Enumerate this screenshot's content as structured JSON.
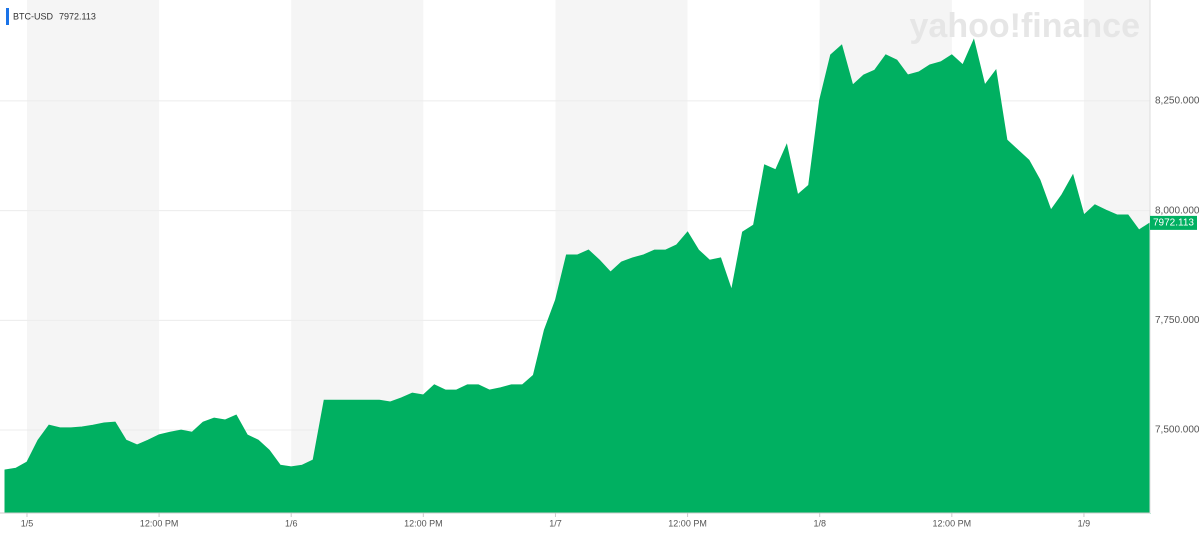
{
  "chart_data": {
    "type": "area",
    "symbol": "BTC-USD",
    "watermark": "yahoo!finance",
    "color": "#00b061",
    "x": [
      -2,
      -1,
      0,
      1,
      2,
      3,
      4,
      5,
      6,
      7,
      8,
      9,
      10,
      11,
      12,
      13,
      14,
      15,
      16,
      17,
      18,
      19,
      20,
      21,
      22,
      23,
      24,
      25,
      26,
      27,
      28,
      29,
      30,
      31,
      32,
      33,
      34,
      35,
      36,
      37,
      38,
      39,
      40,
      41,
      42,
      43,
      44,
      45,
      46,
      47,
      48,
      49,
      50,
      51,
      52,
      53,
      54,
      55,
      56,
      57,
      58,
      59,
      60,
      61,
      62,
      63,
      64,
      65,
      66,
      67,
      68,
      69,
      70,
      71,
      72,
      73,
      74,
      75,
      76,
      77,
      78,
      79,
      80,
      81,
      82,
      83,
      84,
      85,
      86,
      87,
      88,
      89,
      90,
      91,
      92,
      93,
      94,
      95,
      96,
      97,
      98,
      99,
      100,
      101,
      102
    ],
    "values": [
      7409,
      7413,
      7427,
      7477,
      7511,
      7505,
      7505,
      7507,
      7511,
      7516,
      7518,
      7477,
      7466,
      7477,
      7489,
      7495,
      7500,
      7495,
      7518,
      7527,
      7523,
      7534,
      7489,
      7477,
      7454,
      7420,
      7416,
      7420,
      7432,
      7568,
      7568,
      7568,
      7568,
      7568,
      7568,
      7564,
      7573,
      7584,
      7580,
      7603,
      7591,
      7591,
      7603,
      7603,
      7591,
      7596,
      7603,
      7603,
      7625,
      7728,
      7796,
      7899,
      7899,
      7910,
      7887,
      7860,
      7883,
      7892,
      7899,
      7910,
      7910,
      7922,
      7951,
      7910,
      7887,
      7892,
      7819,
      7951,
      7967,
      8104,
      8093,
      8150,
      8036,
      8058,
      8252,
      8355,
      8377,
      8286,
      8309,
      8320,
      8355,
      8343,
      8309,
      8316,
      8332,
      8339,
      8355,
      8332,
      8389,
      8286,
      8320,
      8161,
      8138,
      8115,
      8070,
      8001,
      8036,
      8081,
      7990,
      8013,
      8001,
      7990,
      7990,
      7956,
      7972.113
    ],
    "xlim": [
      -2.45,
      102
    ],
    "xticks": [
      {
        "value": 0,
        "label": "1/5"
      },
      {
        "value": 12,
        "label": "12:00 PM"
      },
      {
        "value": 24,
        "label": "1/6"
      },
      {
        "value": 36,
        "label": "12:00 PM"
      },
      {
        "value": 48,
        "label": "1/7"
      },
      {
        "value": 60,
        "label": "12:00 PM"
      },
      {
        "value": 72,
        "label": "1/8"
      },
      {
        "value": 84,
        "label": "12:00 PM"
      },
      {
        "value": 96,
        "label": "1/9"
      }
    ],
    "ylim": [
      7311,
      8480
    ],
    "yticks": [
      {
        "value": 7500,
        "label": "7,500.000"
      },
      {
        "value": 7750,
        "label": "7,750.000"
      },
      {
        "value": 8000,
        "label": "8,000.000"
      },
      {
        "value": 8250,
        "label": "8,250.000"
      }
    ],
    "grid": true
  }
}
